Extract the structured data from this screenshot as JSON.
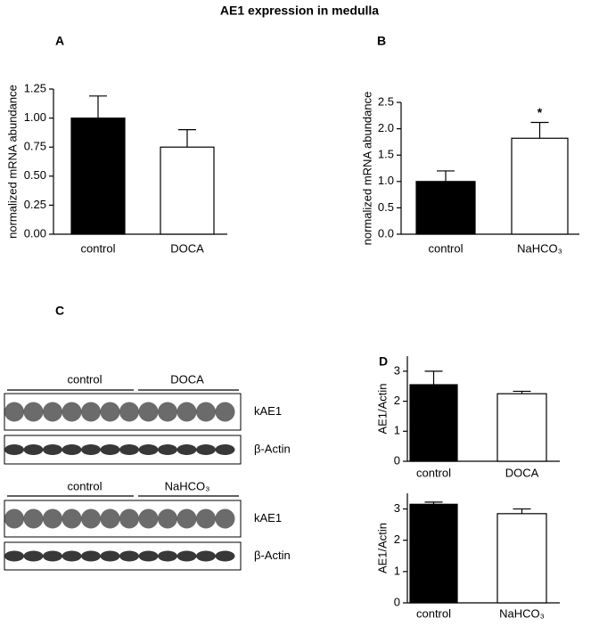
{
  "figure": {
    "title": "AE1 expression in medulla",
    "blot_panel": "C",
    "blots": [
      {
        "groups": [
          "control",
          "DOCA"
        ],
        "rows": [
          "kAE1",
          "β-Actin"
        ]
      },
      {
        "groups": [
          "control",
          "NaHCO₃"
        ],
        "rows": [
          "kAE1",
          "β-Actin"
        ]
      }
    ]
  },
  "chart_data": [
    {
      "type": "bar",
      "panel": "A",
      "y_label": "normalized mRNA abundance",
      "categories": [
        "control",
        "DOCA"
      ],
      "values": [
        1.0,
        0.75
      ],
      "errors": [
        0.19,
        0.15
      ],
      "colors": [
        "#000000",
        "#ffffff"
      ],
      "ylim": [
        0,
        1.25
      ],
      "yticks": [
        {
          "value": 0,
          "label": "0.00"
        },
        {
          "value": 0.25,
          "label": "0.25"
        },
        {
          "value": 0.5,
          "label": "0.50"
        },
        {
          "value": 0.75,
          "label": "0.75"
        },
        {
          "value": 1,
          "label": "1.00"
        },
        {
          "value": 1.25,
          "label": "1.25"
        }
      ]
    },
    {
      "type": "bar",
      "panel": "B",
      "y_label": "normalized mRNA abundance",
      "categories": [
        "control",
        "NaHCO₃"
      ],
      "values": [
        1.0,
        1.82
      ],
      "errors": [
        0.2,
        0.3
      ],
      "colors": [
        "#000000",
        "#ffffff"
      ],
      "annotations": [
        null,
        "*"
      ],
      "ylim": [
        0,
        2.5
      ],
      "yticks": [
        {
          "value": 0,
          "label": "0.0"
        },
        {
          "value": 0.5,
          "label": "0.5"
        },
        {
          "value": 1,
          "label": "1.0"
        },
        {
          "value": 1.5,
          "label": "1.5"
        },
        {
          "value": 2,
          "label": "2.0"
        },
        {
          "value": 2.5,
          "label": "2.5"
        }
      ]
    },
    {
      "type": "bar",
      "panel": "D",
      "y_label": "AE1/Actin",
      "categories": [
        "control",
        "DOCA"
      ],
      "values": [
        2.55,
        2.25
      ],
      "errors": [
        0.45,
        0.08
      ],
      "colors": [
        "#000000",
        "#ffffff"
      ],
      "ylim": [
        0,
        3.5
      ],
      "yticks": [
        0,
        1,
        2,
        3
      ]
    },
    {
      "type": "bar",
      "y_label": "AE1/Actin",
      "categories": [
        "control",
        "NaHCO₃"
      ],
      "values": [
        3.15,
        2.85
      ],
      "errors": [
        0.07,
        0.15
      ],
      "colors": [
        "#000000",
        "#ffffff"
      ],
      "ylim": [
        0,
        3.5
      ],
      "yticks": [
        0,
        1,
        2,
        3
      ]
    }
  ]
}
